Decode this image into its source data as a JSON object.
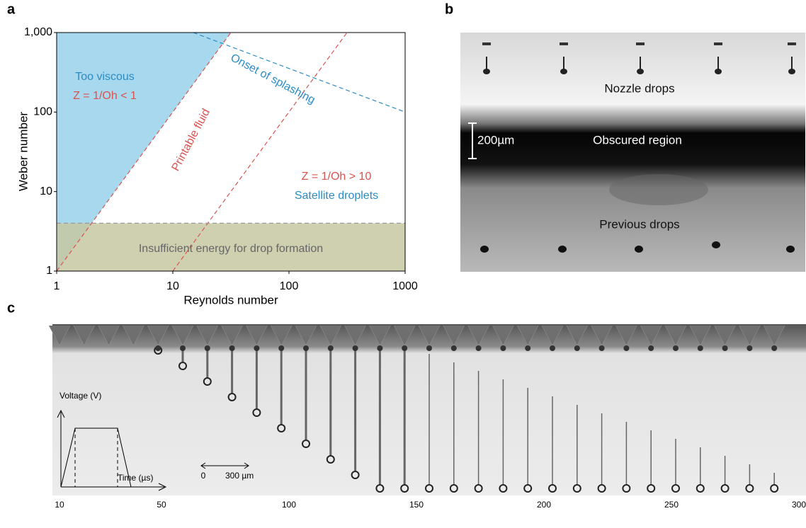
{
  "chart_data": {
    "type": "line",
    "panel_label": "a",
    "x_label": "Reynolds number",
    "y_label": "Weber number",
    "log": true,
    "xlim": [
      1,
      1000
    ],
    "ylim": [
      1,
      1000
    ],
    "xticks": [
      1,
      10,
      100,
      1000
    ],
    "yticks": [
      1,
      10,
      100,
      {
        "value": 1000,
        "label": "1,000"
      }
    ],
    "lines": [
      {
        "x": [
          1,
          31.6
        ],
        "y": [
          1,
          1000
        ],
        "color": "#d9534f"
      },
      {
        "x": [
          10,
          316
        ],
        "y": [
          1,
          1000
        ],
        "color": "#d9534f"
      },
      {
        "x": [
          15,
          1000
        ],
        "y": [
          1000,
          100
        ],
        "color": "#2b8cc4"
      },
      {
        "x": [
          1,
          1000
        ],
        "y": [
          4,
          4
        ],
        "color": "#999999"
      }
    ],
    "region_colors": [
      "#a8d8ee",
      "#c7c8a2"
    ],
    "annotations": [
      "Too viscous",
      "Z = 1/Oh < 1",
      "Onset of splashing",
      "Printable fluid",
      "Z = 1/Oh > 10",
      "Satellite droplets",
      "Insufficient energy for drop formation"
    ]
  },
  "panel_b": {
    "label": "b",
    "scale_bar": "200µm",
    "texts": [
      "Nozzle drops",
      "Obscured region",
      "Previous drops"
    ]
  },
  "panel_c": {
    "label": "c",
    "inset_y_label": "Voltage (V)",
    "inset_x_label": "Time (µs)",
    "scale_bar": [
      "0",
      "300 µm"
    ],
    "xlim": [
      10,
      300
    ],
    "xticks": [
      10,
      50,
      100,
      150,
      200,
      250,
      300
    ]
  }
}
